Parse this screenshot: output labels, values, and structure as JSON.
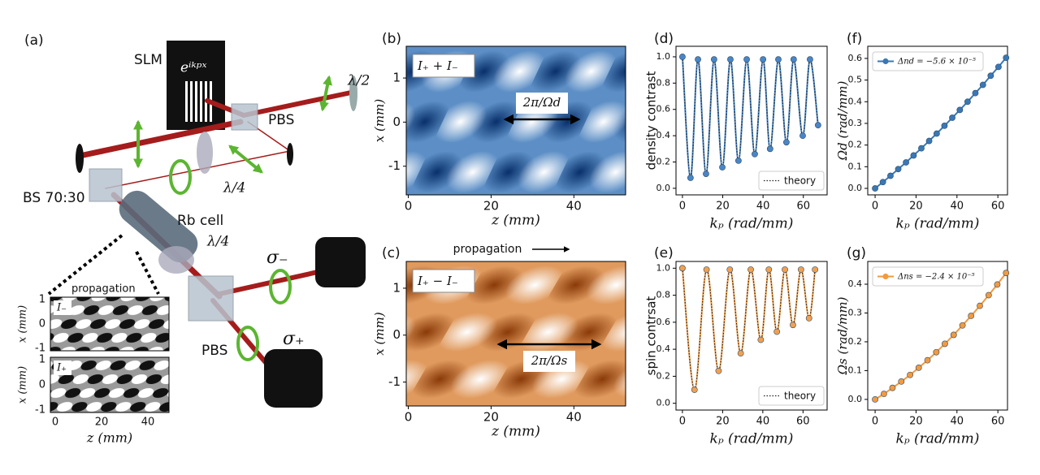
{
  "setup": {
    "label": "(a)",
    "slm": "SLM",
    "phase": "eⁱᵏᵖˣ",
    "half_wave": "λ/2",
    "pbs_top": "PBS",
    "quarter_wave_top": "λ/4",
    "beam_splitter": "BS 70:30",
    "cell": "Rb cell",
    "quarter_wave_bottom": "λ/4",
    "sigma_minus": "σ₋",
    "sigma_plus": "σ₊",
    "pbs_bottom": "PBS",
    "inset": {
      "propagation": "propagation",
      "top_label": "I₋",
      "bottom_label": "I₊",
      "y_label": "x (mm)",
      "x_label": "z (mm)",
      "top_y_ticks": [
        1,
        0,
        -1
      ],
      "bottom_y_ticks": [
        1,
        0,
        -1
      ],
      "x_ticks": [
        0,
        20,
        40
      ]
    }
  },
  "chart_data": [
    {
      "type": "heatmap",
      "label": "(b)",
      "colormap": "Blues",
      "x_label": "z (mm)",
      "y_label": "x (mm)",
      "image_label": "I₊ + I₋",
      "arrow_label": "2π/Ωd",
      "xlim": [
        -0.5,
        52.5
      ],
      "ylim": [
        -1.65,
        1.72
      ],
      "xticks": [
        0,
        20,
        40
      ],
      "yticks": [
        1,
        0,
        -1
      ]
    },
    {
      "type": "heatmap",
      "label": "(c)",
      "colormap": "Oranges",
      "x_label": "z (mm)",
      "y_label": "x (mm)",
      "image_label": "I₊ − I₋",
      "arrow_label": "2π/Ωs",
      "annotation": "propagation",
      "xlim": [
        -0.5,
        52.5
      ],
      "ylim": [
        -1.51,
        1.57
      ],
      "xticks": [
        0,
        20,
        40
      ],
      "yticks": [
        1,
        0,
        -1
      ]
    },
    {
      "type": "line",
      "label": "(d)",
      "x_label": "kₚ (rad/mm)",
      "y_label": "density contrast",
      "xlim": [
        -3.2,
        71.8
      ],
      "ylim": [
        -0.05,
        1.08
      ],
      "xticks": [
        0,
        20,
        40,
        60
      ],
      "yticks": [
        {
          "value": 0,
          "label": "0.0"
        },
        {
          "value": 0.2,
          "label": "0.2"
        },
        {
          "value": 0.4,
          "label": "0.4"
        },
        {
          "value": 0.6,
          "label": "0.6"
        },
        {
          "value": 0.8,
          "label": "0.8"
        },
        {
          "value": 1,
          "label": "1.0"
        }
      ],
      "legend": "lower right",
      "smooth": true,
      "series": [
        {
          "name": "theory",
          "color": "#4a86c5",
          "linestyle": "dotted",
          "x": [
            0,
            4,
            7.7,
            11.7,
            15.7,
            19.8,
            23.8,
            27.8,
            31.9,
            35.9,
            40,
            43.5,
            47.6,
            51.6,
            55.2,
            59.7,
            63.3,
            67.3
          ],
          "values": [
            1.0,
            0.08,
            0.98,
            0.11,
            0.98,
            0.16,
            0.98,
            0.21,
            0.98,
            0.26,
            0.98,
            0.3,
            0.98,
            0.35,
            0.98,
            0.4,
            0.98,
            0.48
          ]
        }
      ]
    },
    {
      "type": "line",
      "label": "(e)",
      "x_label": "kₚ (rad/mm)",
      "y_label": "spin contrsat",
      "xlim": [
        -3.2,
        72
      ],
      "ylim": [
        -0.05,
        1.05
      ],
      "xticks": [
        0,
        20,
        40,
        60
      ],
      "yticks": [
        {
          "value": 0,
          "label": "0.0"
        },
        {
          "value": 0.2,
          "label": "0.2"
        },
        {
          "value": 0.4,
          "label": "0.4"
        },
        {
          "value": 0.6,
          "label": "0.6"
        },
        {
          "value": 0.8,
          "label": "0.8"
        },
        {
          "value": 1,
          "label": "1.0"
        }
      ],
      "legend": "lower right",
      "smooth": true,
      "series": [
        {
          "name": "theory",
          "color": "#f0a050",
          "linestyle": "dotted",
          "x": [
            0,
            6,
            12,
            18,
            23.6,
            29,
            34,
            39,
            43,
            47,
            51,
            55,
            59,
            63,
            66
          ],
          "values": [
            1.0,
            0.1,
            0.99,
            0.24,
            0.99,
            0.37,
            0.99,
            0.47,
            0.99,
            0.53,
            0.99,
            0.58,
            0.99,
            0.63,
            0.99
          ]
        }
      ]
    },
    {
      "type": "line",
      "label": "(f)",
      "x_label": "kₚ (rad/mm)",
      "y_label": "Ωd (rad/mm)",
      "xlim": [
        -3.6,
        64.7
      ],
      "ylim": [
        -0.03,
        0.656
      ],
      "xticks": [
        0,
        20,
        40,
        60
      ],
      "yticks": [
        {
          "value": 0,
          "label": "0.0"
        },
        {
          "value": 0.1,
          "label": "0.1"
        },
        {
          "value": 0.2,
          "label": "0.2"
        },
        {
          "value": 0.3,
          "label": "0.3"
        },
        {
          "value": 0.4,
          "label": "0.4"
        },
        {
          "value": 0.5,
          "label": "0.5"
        },
        {
          "value": 0.6,
          "label": "0.6"
        }
      ],
      "legend": "upper left",
      "smooth": false,
      "series": [
        {
          "name": "Δnd = −5.6 × 10⁻⁵",
          "color": "#3a78b5",
          "linestyle": "solid",
          "x": [
            0,
            3.8,
            7.5,
            11.3,
            15.1,
            18.8,
            22.6,
            26.4,
            30.1,
            33.9,
            37.7,
            41.4,
            45.2,
            49,
            52.7,
            56.5,
            60.3,
            64
          ],
          "values": [
            0,
            0.029,
            0.058,
            0.089,
            0.12,
            0.152,
            0.185,
            0.219,
            0.253,
            0.289,
            0.326,
            0.362,
            0.4,
            0.44,
            0.478,
            0.52,
            0.561,
            0.603
          ]
        }
      ]
    },
    {
      "type": "line",
      "label": "(g)",
      "x_label": "kₚ (rad/mm)",
      "y_label": "Ωs (rad/mm)",
      "xlim": [
        -3.6,
        64.7
      ],
      "ylim": [
        -0.037,
        0.479
      ],
      "xticks": [
        0,
        20,
        40,
        60
      ],
      "yticks": [
        {
          "value": 0,
          "label": "0.0"
        },
        {
          "value": 0.1,
          "label": "0.1"
        },
        {
          "value": 0.2,
          "label": "0.2"
        },
        {
          "value": 0.3,
          "label": "0.3"
        },
        {
          "value": 0.4,
          "label": "0.4"
        }
      ],
      "legend": "upper left",
      "smooth": false,
      "series": [
        {
          "name": "Δns = −2.4 × 10⁻⁵",
          "color": "#f29a3f",
          "linestyle": "solid",
          "x": [
            0,
            4.3,
            8.5,
            12.8,
            17.1,
            21.3,
            25.6,
            29.9,
            34.1,
            38.4,
            42.7,
            46.9,
            51.2,
            55.5,
            59.7,
            64
          ],
          "values": [
            0,
            0.019,
            0.04,
            0.062,
            0.085,
            0.11,
            0.136,
            0.164,
            0.193,
            0.224,
            0.257,
            0.29,
            0.325,
            0.362,
            0.399,
            0.439
          ]
        }
      ]
    }
  ]
}
